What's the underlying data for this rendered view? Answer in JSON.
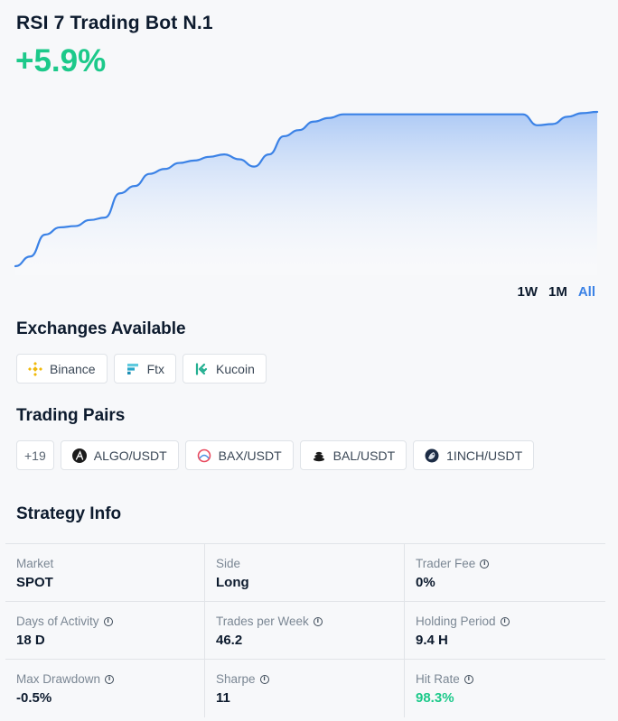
{
  "bot": {
    "title": "RSI 7 Trading Bot N.1",
    "return_pct": "+5.9%"
  },
  "chart_data": {
    "type": "area",
    "title": "",
    "xlabel": "",
    "ylabel": "",
    "y": [
      0.0,
      0.8,
      2.6,
      3.2,
      3.3,
      3.8,
      4.0,
      6.0,
      6.6,
      7.6,
      8.0,
      8.5,
      8.7,
      9.0,
      9.2,
      8.8,
      8.2,
      9.2,
      10.7,
      11.2,
      11.9,
      12.2,
      12.5,
      12.5,
      12.5,
      12.5,
      12.5,
      12.5,
      12.5,
      12.5,
      12.5,
      12.5,
      12.5,
      12.5,
      12.5,
      11.6,
      11.7,
      12.3,
      12.6,
      12.7
    ],
    "line_color": "#3b82e6",
    "fill_color": "#cfe0fa",
    "grid": false
  },
  "ranges": {
    "items": [
      "1W",
      "1M",
      "All"
    ],
    "active": "All"
  },
  "exchanges": {
    "title": "Exchanges Available",
    "items": [
      {
        "label": "Binance",
        "icon": "binance-icon"
      },
      {
        "label": "Ftx",
        "icon": "ftx-icon"
      },
      {
        "label": "Kucoin",
        "icon": "kucoin-icon"
      }
    ]
  },
  "pairs": {
    "title": "Trading Pairs",
    "more": "+19",
    "items": [
      {
        "label": "ALGO/USDT",
        "icon": "algo-icon"
      },
      {
        "label": "BAX/USDT",
        "icon": "bax-icon"
      },
      {
        "label": "BAL/USDT",
        "icon": "bal-icon"
      },
      {
        "label": "1INCH/USDT",
        "icon": "1inch-icon"
      }
    ]
  },
  "strategy": {
    "title": "Strategy Info",
    "rows": [
      [
        {
          "label": "Market",
          "value": "SPOT"
        },
        {
          "label": "Side",
          "value": "Long"
        },
        {
          "label": "Trader Fee",
          "value": "0%"
        }
      ],
      [
        {
          "label": "Days of Activity",
          "value": "18 D"
        },
        {
          "label": "Trades per Week",
          "value": "46.2"
        },
        {
          "label": "Holding Period",
          "value": "9.4 H"
        }
      ],
      [
        {
          "label": "Max Drawdown",
          "value": "-0.5%"
        },
        {
          "label": "Sharpe",
          "value": "11"
        },
        {
          "label": "Hit Rate",
          "value": "98.3%"
        }
      ]
    ]
  },
  "colors": {
    "accent": "#3b82e6",
    "positive": "#1cc98a",
    "text": "#0d1b2e"
  }
}
